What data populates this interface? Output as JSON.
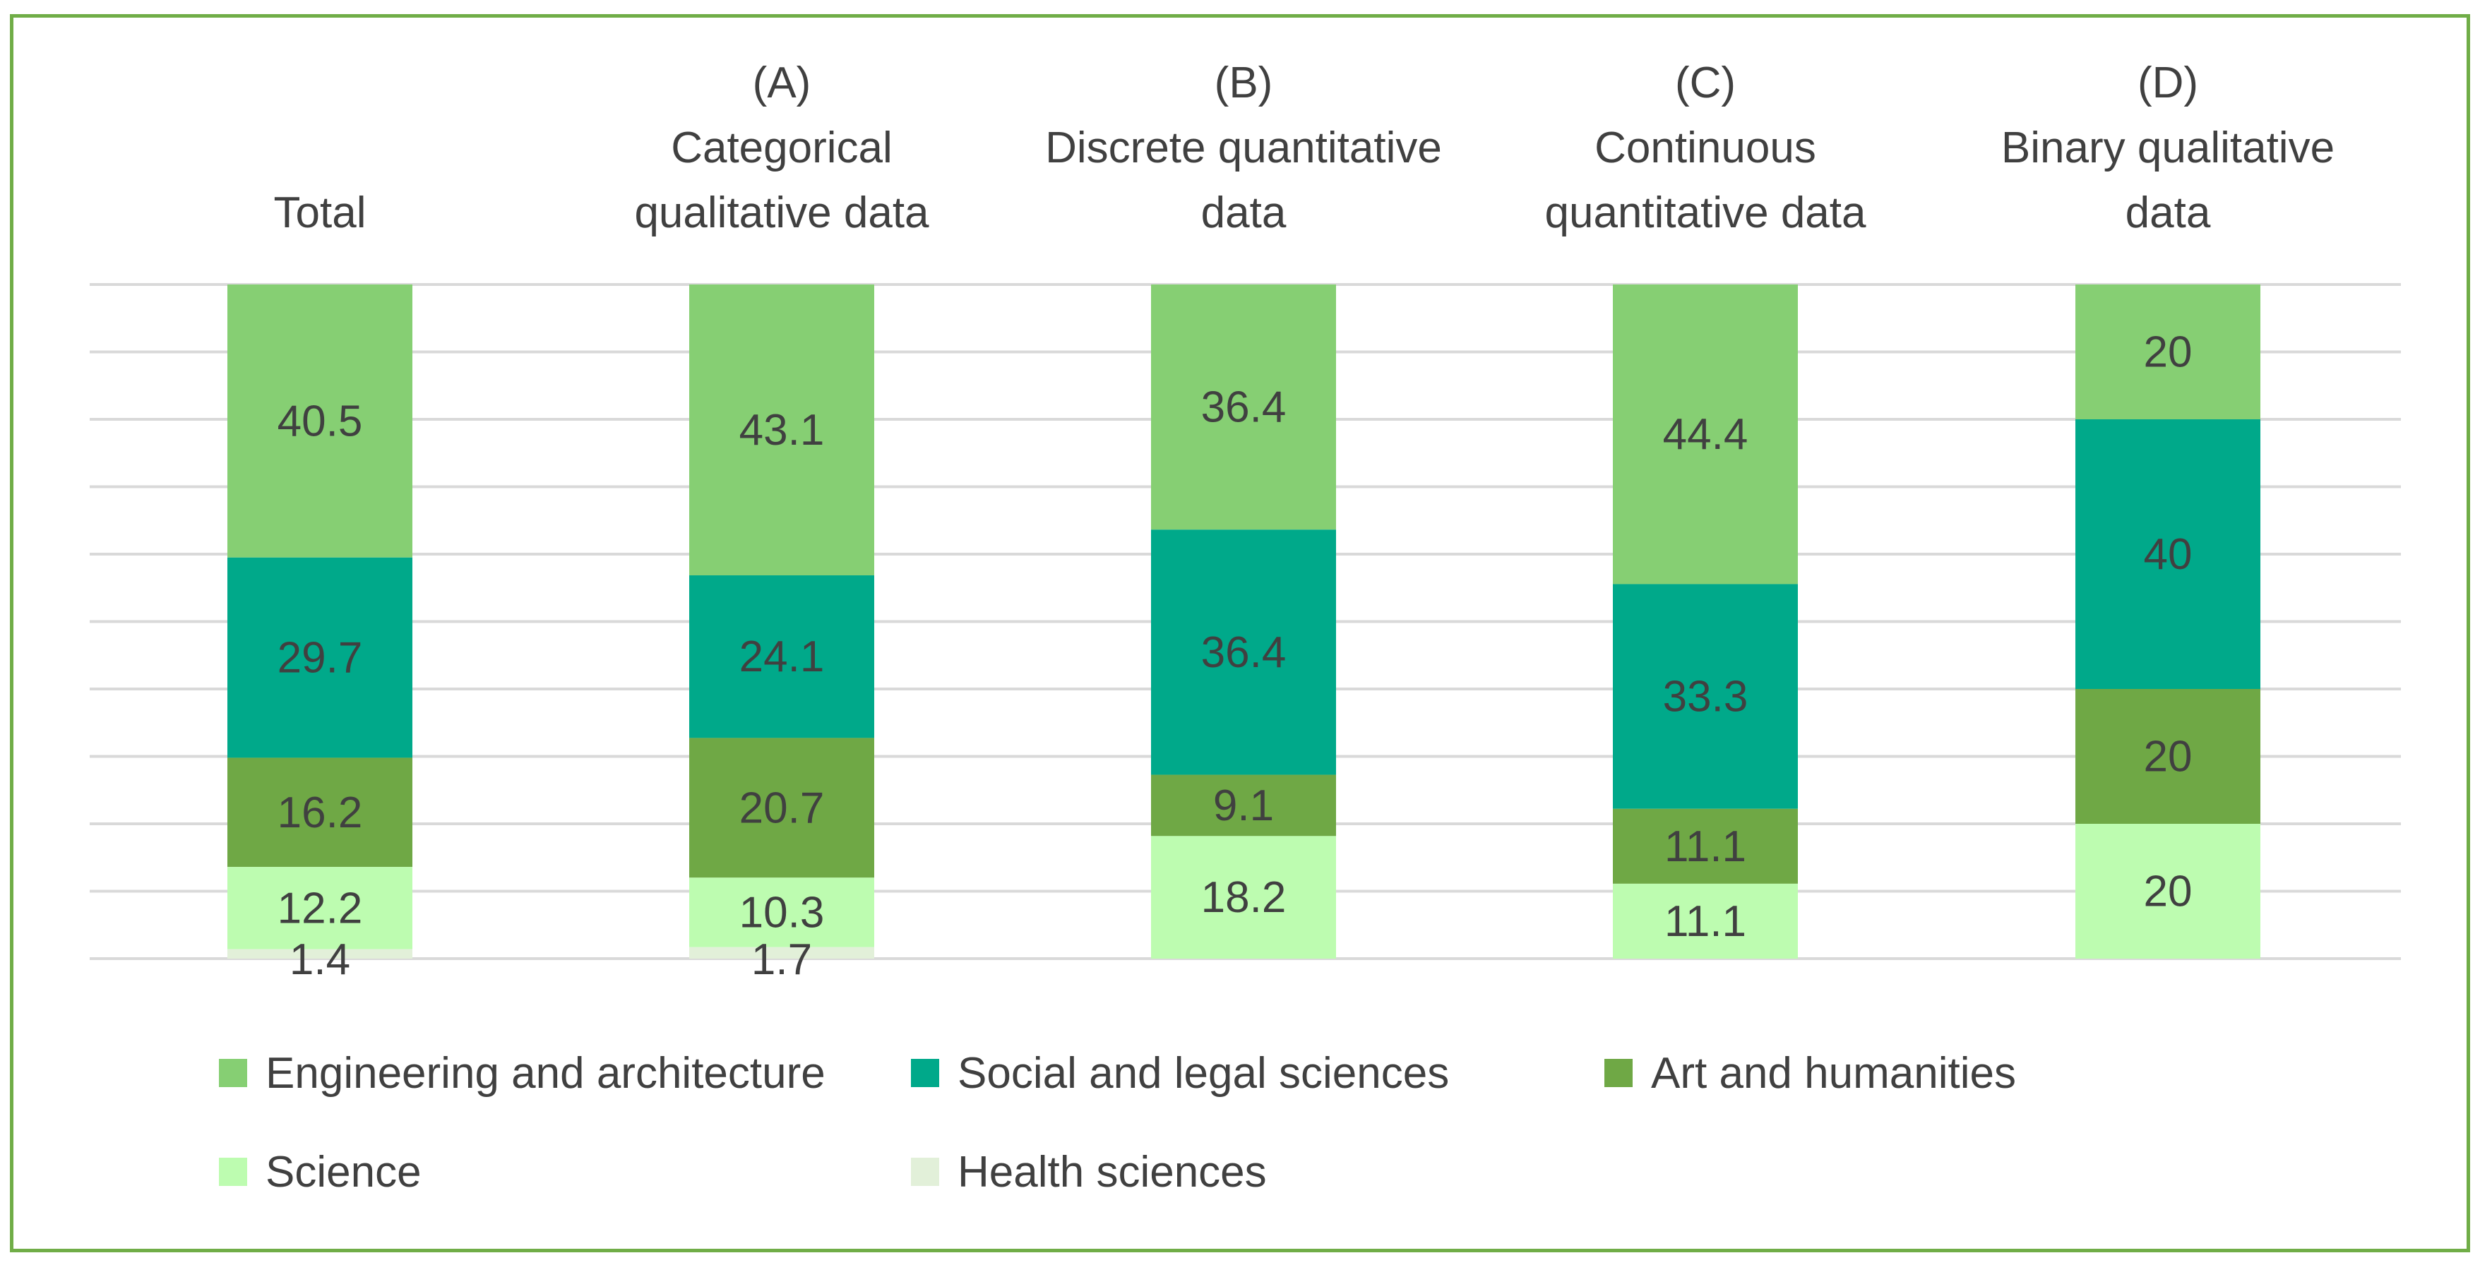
{
  "chart_data": {
    "type": "bar",
    "stacked": true,
    "percent_scale": true,
    "categories": [
      [
        "Total"
      ],
      [
        "(A)",
        "Categorical",
        "qualitative data"
      ],
      [
        "(B)",
        "Discrete quantitative",
        "data"
      ],
      [
        "(C)",
        "Continuous",
        "quantitative data"
      ],
      [
        "(D)",
        "Binary qualitative",
        "data"
      ]
    ],
    "series": [
      {
        "name": "Engineering and architecture",
        "color": "#86cf73",
        "values": [
          40.5,
          43.1,
          36.4,
          44.4,
          20
        ]
      },
      {
        "name": "Social and legal sciences",
        "color": "#00a98a",
        "values": [
          29.7,
          24.1,
          36.4,
          33.3,
          40
        ]
      },
      {
        "name": "Art and humanities",
        "color": "#6fa845",
        "values": [
          16.2,
          20.7,
          9.1,
          11.1,
          20
        ]
      },
      {
        "name": "Science",
        "color": "#bdfcb0",
        "values": [
          12.2,
          10.3,
          18.2,
          11.1,
          20
        ]
      },
      {
        "name": "Health sciences",
        "color": "#e2f0d9",
        "values": [
          1.4,
          1.7,
          0,
          0,
          0
        ]
      }
    ],
    "ylim": [
      0,
      100
    ],
    "grid": true,
    "legend": "bottom",
    "title": "",
    "xlabel": "",
    "ylabel": ""
  }
}
